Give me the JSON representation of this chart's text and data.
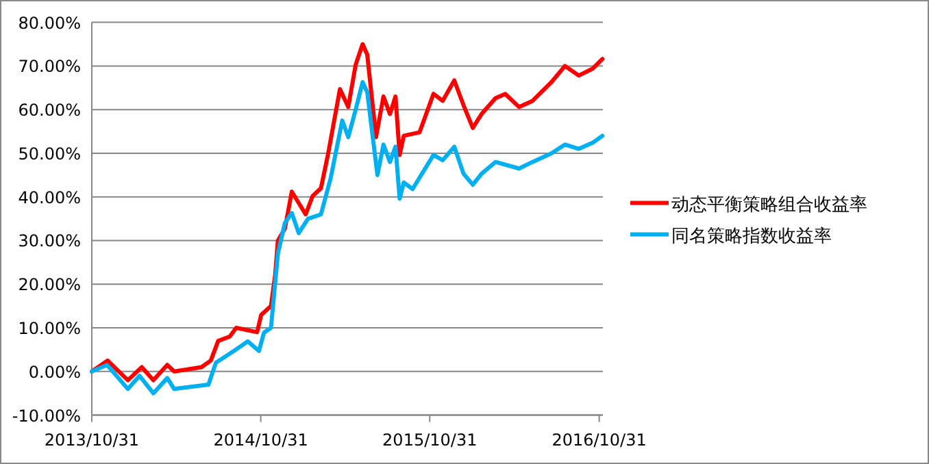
{
  "chart_data": {
    "type": "line",
    "grid": "y",
    "legend": "right",
    "xlim": [
      "2013-10-31",
      "2016-11-08"
    ],
    "ylim": [
      -10,
      80
    ],
    "xticks": [
      {
        "value": "2013-10-31",
        "label": "2013/10/31"
      },
      {
        "value": "2014-10-31",
        "label": "2014/10/31"
      },
      {
        "value": "2015-10-31",
        "label": "2015/10/31"
      },
      {
        "value": "2016-10-31",
        "label": "2016/10/31"
      }
    ],
    "yticks": [
      {
        "value": -10,
        "label": "-10.00%"
      },
      {
        "value": 0,
        "label": "0.00%"
      },
      {
        "value": 10,
        "label": "10.00%"
      },
      {
        "value": 20,
        "label": "20.00%"
      },
      {
        "value": 30,
        "label": "30.00%"
      },
      {
        "value": 40,
        "label": "40.00%"
      },
      {
        "value": 50,
        "label": "50.00%"
      },
      {
        "value": 60,
        "label": "60.00%"
      },
      {
        "value": 70,
        "label": "70.00%"
      },
      {
        "value": 80,
        "label": "80.00%"
      }
    ],
    "series": [
      {
        "name": "动态平衡策略组合收益率",
        "color": "#ff0000",
        "x": [
          "2013-10-31",
          "2013-12-04",
          "2014-01-17",
          "2014-02-16",
          "2014-03-13",
          "2014-04-12",
          "2014-04-27",
          "2014-06-25",
          "2014-07-15",
          "2014-07-31",
          "2014-08-25",
          "2014-09-08",
          "2014-10-23",
          "2014-11-01",
          "2014-11-22",
          "2014-12-01",
          "2014-12-07",
          "2014-12-22",
          "2015-01-06",
          "2015-02-05",
          "2015-02-20",
          "2015-03-10",
          "2015-03-25",
          "2015-04-20",
          "2015-05-08",
          "2015-05-24",
          "2015-06-08",
          "2015-06-18",
          "2015-07-07",
          "2015-07-23",
          "2015-08-06",
          "2015-08-18",
          "2015-08-27",
          "2015-09-05",
          "2015-10-09",
          "2015-11-08",
          "2015-11-28",
          "2015-12-23",
          "2016-01-12",
          "2016-02-01",
          "2016-02-20",
          "2016-03-21",
          "2016-04-11",
          "2016-05-11",
          "2016-06-09",
          "2016-07-20",
          "2016-08-18",
          "2016-09-17",
          "2016-10-17",
          "2016-11-07"
        ],
        "values": [
          0,
          2.5,
          -2,
          1,
          -2,
          1.5,
          0,
          1,
          2.5,
          7,
          8,
          10,
          9,
          13,
          15,
          22,
          30,
          32.7,
          41.2,
          36,
          40.2,
          42,
          49.6,
          64.7,
          60.6,
          70.3,
          75,
          72.6,
          53.7,
          63,
          59,
          63,
          49.6,
          54,
          54.8,
          63.6,
          62,
          66.7,
          61,
          55.8,
          59,
          62.6,
          63.6,
          60.6,
          62,
          66.3,
          70,
          67.8,
          69.4,
          71.6
        ]
      },
      {
        "name": "同名策略指数收益率",
        "color": "#00b0f0",
        "x": [
          "2013-10-31",
          "2013-12-03",
          "2014-01-17",
          "2014-02-11",
          "2014-03-13",
          "2014-04-12",
          "2014-04-27",
          "2014-07-10",
          "2014-07-26",
          "2014-09-03",
          "2014-10-03",
          "2014-10-27",
          "2014-11-07",
          "2014-11-22",
          "2014-12-07",
          "2014-12-22",
          "2015-01-06",
          "2015-01-21",
          "2015-02-10",
          "2015-03-10",
          "2015-03-31",
          "2015-04-25",
          "2015-05-08",
          "2015-05-24",
          "2015-06-08",
          "2015-06-18",
          "2015-07-10",
          "2015-07-23",
          "2015-08-06",
          "2015-08-18",
          "2015-08-27",
          "2015-09-05",
          "2015-09-24",
          "2015-11-08",
          "2015-11-28",
          "2015-12-23",
          "2016-01-12",
          "2016-02-01",
          "2016-02-20",
          "2016-03-21",
          "2016-05-11",
          "2016-06-09",
          "2016-07-20",
          "2016-08-18",
          "2016-09-17",
          "2016-10-17",
          "2016-11-07"
        ],
        "values": [
          0,
          1.5,
          -4,
          -1,
          -5,
          -1.5,
          -4,
          -3,
          2,
          4.7,
          6.9,
          4.7,
          8.9,
          10,
          27,
          34,
          36.3,
          31.7,
          35,
          36,
          44.3,
          57.5,
          53.7,
          60,
          66.3,
          64,
          45,
          52,
          48,
          51.5,
          39.6,
          43.3,
          41.8,
          49.6,
          48.4,
          51.5,
          45.3,
          42.8,
          45.3,
          48,
          46.5,
          48,
          50,
          52,
          51,
          52.4,
          54
        ]
      }
    ]
  }
}
